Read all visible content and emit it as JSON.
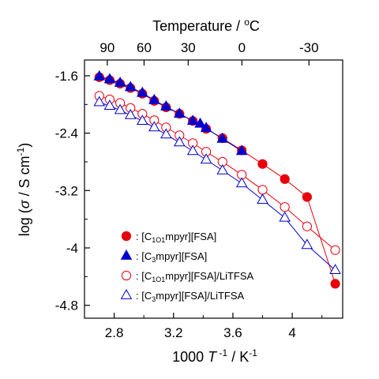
{
  "chart_data": {
    "type": "scatter",
    "title": "",
    "xlabel_top": "Temperature / °C",
    "xlabel": "1000 T⁻¹ / K⁻¹",
    "ylabel": "log (σ / S cm⁻¹)",
    "xlim": [
      2.6,
      4.34
    ],
    "ylim": [
      -4.98,
      -1.38
    ],
    "x_ticks": [
      2.8,
      3.2,
      3.6,
      4.0
    ],
    "x_tick_labels": [
      "2.8",
      "3.2",
      "3.6",
      "4"
    ],
    "y_ticks": [
      -1.6,
      -2.4,
      -3.2,
      -4.0,
      -4.8
    ],
    "y_tick_labels": [
      "-1.6",
      "-2.4",
      "-3.2",
      "-4",
      "-4.8"
    ],
    "top_ticks_celsius": [
      90,
      60,
      30,
      0,
      -30
    ],
    "top_tick_labels": [
      "90",
      "60",
      "30",
      "0",
      "-30"
    ],
    "legend_position": "lower-left",
    "series": [
      {
        "name": "[C1O1mpyr][FSA]",
        "legend": {
          "pre": "[C",
          "sub": "1O1",
          "post": "mpyr][FSA]"
        },
        "marker": "circle",
        "filled": true,
        "color": "#e8000b",
        "x": [
          2.7,
          2.77,
          2.84,
          2.91,
          2.99,
          3.07,
          3.15,
          3.24,
          3.33,
          3.42,
          3.53,
          3.66,
          3.8,
          3.95,
          4.1,
          4.29
        ],
        "y": [
          -1.62,
          -1.66,
          -1.71,
          -1.77,
          -1.85,
          -1.95,
          -2.04,
          -2.13,
          -2.23,
          -2.34,
          -2.47,
          -2.64,
          -2.83,
          -3.04,
          -3.29,
          -4.5
        ]
      },
      {
        "name": "[C3mpyr][FSA]",
        "legend": {
          "pre": "[C",
          "sub": "3",
          "post": "mpyr][FSA]"
        },
        "marker": "triangle",
        "filled": true,
        "color": "#0000cc",
        "x": [
          2.7,
          2.77,
          2.84,
          2.91,
          2.99,
          3.07,
          3.15,
          3.24,
          3.33,
          3.38,
          3.42,
          3.53,
          3.66
        ],
        "y": [
          -1.61,
          -1.65,
          -1.7,
          -1.76,
          -1.84,
          -1.94,
          -2.03,
          -2.13,
          -2.23,
          -2.27,
          -2.33,
          -2.48,
          -2.65
        ]
      },
      {
        "name": "[C1O1mpyr][FSA]/LiTFSA",
        "legend": {
          "pre": "[C",
          "sub": "1O1",
          "post": "mpyr][FSA]/LiTFSA"
        },
        "marker": "circle",
        "filled": false,
        "color": "#e8000b",
        "x": [
          2.7,
          2.77,
          2.84,
          2.91,
          2.99,
          3.07,
          3.15,
          3.24,
          3.33,
          3.42,
          3.53,
          3.66,
          3.8,
          3.95,
          4.1,
          4.29
        ],
        "y": [
          -1.88,
          -1.93,
          -1.98,
          -2.05,
          -2.13,
          -2.22,
          -2.32,
          -2.43,
          -2.54,
          -2.66,
          -2.8,
          -2.98,
          -3.19,
          -3.43,
          -3.7,
          -4.03
        ]
      },
      {
        "name": "[C3mpyr][FSA]/LiTFSA",
        "legend": {
          "pre": "[C",
          "sub": "3",
          "post": "mpyr][FSA]/LiTFSA"
        },
        "marker": "triangle",
        "filled": false,
        "color": "#0000cc",
        "x": [
          2.7,
          2.77,
          2.84,
          2.91,
          2.99,
          3.07,
          3.15,
          3.24,
          3.33,
          3.42,
          3.53,
          3.66,
          3.8,
          3.95,
          4.1,
          4.29
        ],
        "y": [
          -1.97,
          -2.02,
          -2.08,
          -2.15,
          -2.23,
          -2.32,
          -2.42,
          -2.53,
          -2.65,
          -2.77,
          -2.92,
          -3.1,
          -3.33,
          -3.58,
          -3.96,
          -4.31
        ]
      }
    ]
  }
}
